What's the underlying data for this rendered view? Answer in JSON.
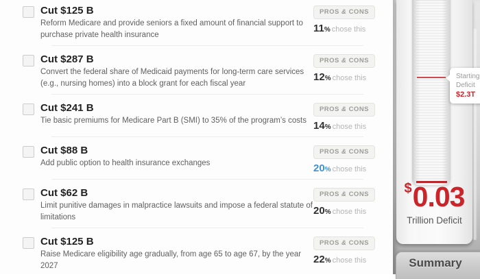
{
  "list": {
    "pros_cons_label": {
      "word1": "PROS",
      "amp": "&",
      "word2": "CONS"
    },
    "percent_sign": "%",
    "chose_suffix": "chose this",
    "items": [
      {
        "title": "Cut $125 B",
        "desc": "Reform Medicare and provide seniors a fixed amount of financial support to purchase private health insurance",
        "pct": "11",
        "highlighted": false
      },
      {
        "title": "Cut $287 B",
        "desc": "Convert the federal share of Medicaid payments for long-term care services (e.g., nursing homes) into a block grant for each fiscal year",
        "pct": "12",
        "highlighted": false
      },
      {
        "title": "Cut $241 B",
        "desc": "Tie basic premiums for Medicare Part B (SMI) to 35% of the program’s costs",
        "pct": "14",
        "highlighted": false
      },
      {
        "title": "Cut $88 B",
        "desc": "Add public option to health insurance exchanges",
        "pct": "20",
        "highlighted": true
      },
      {
        "title": "Cut $62 B",
        "desc": "Limit punitive damages in malpractice lawsuits and impose a federal statute of limitations",
        "pct": "20",
        "highlighted": false
      },
      {
        "title": "Cut $125 B",
        "desc": "Raise Medicare eligibility age gradually, from age 65 to age 67, by the year 2027",
        "pct": "22",
        "highlighted": false
      }
    ]
  },
  "gauge": {
    "tooltip": {
      "line1": "Starting",
      "line2": "Deficit",
      "value": "$2.3T"
    },
    "currency": "$",
    "amount": "0.03",
    "unit_label": "Trillion Deficit",
    "summary_label": "Summary",
    "starting_deficit_trillions": 2.3,
    "current_deficit_trillions": 0.03
  },
  "colors": {
    "accent_red": "#c9252b",
    "highlight_blue": "#3f93d2"
  }
}
